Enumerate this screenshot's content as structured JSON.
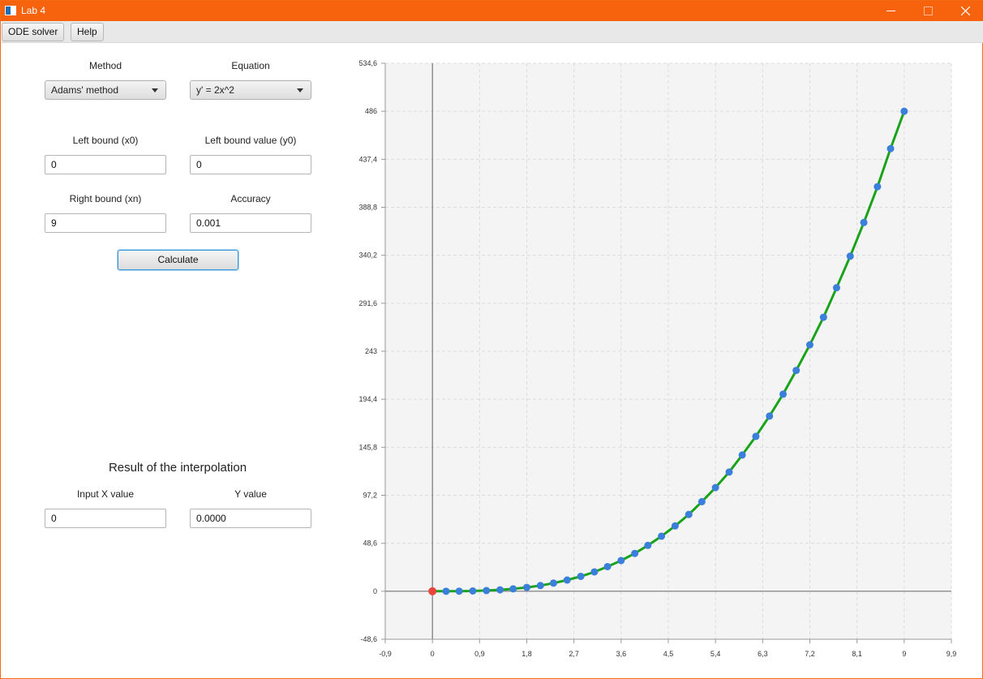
{
  "window": {
    "title": "Lab 4",
    "accent": "#f7630c"
  },
  "menu": {
    "items": [
      "ODE solver",
      "Help"
    ]
  },
  "form": {
    "method_label": "Method",
    "method_value": "Adams' method",
    "equation_label": "Equation",
    "equation_value": "y' = 2x^2",
    "left_bound_label": "Left bound (x0)",
    "left_bound_value": "0",
    "left_bound_y_label": "Left bound value (y0)",
    "left_bound_y_value": "0",
    "right_bound_label": "Right bound (xn)",
    "right_bound_value": "9",
    "accuracy_label": "Accuracy",
    "accuracy_value": "0.001",
    "calculate_label": "Calculate"
  },
  "interpolation": {
    "title": "Result of the interpolation",
    "input_x_label": "Input X value",
    "input_x_value": "0",
    "y_label": "Y value",
    "y_value": "0.0000"
  },
  "chart_data": {
    "type": "line",
    "title": "",
    "xlabel": "",
    "ylabel": "",
    "xlim": [
      -0.9,
      9.9
    ],
    "ylim": [
      -48.6,
      534.6
    ],
    "grid": true,
    "xticks": [
      "-0,9",
      "0",
      "0,9",
      "1,8",
      "2,7",
      "3,6",
      "4,5",
      "5,4",
      "6,3",
      "7,2",
      "8,1",
      "9",
      "9,9"
    ],
    "yticks": [
      "534,6",
      "486",
      "437,4",
      "388,8",
      "340,2",
      "291,6",
      "243",
      "194,4",
      "145,8",
      "97,2",
      "48,6",
      "0",
      "-48,6"
    ],
    "series": [
      {
        "line_color": "#1aa31a",
        "point_color": "#3a7fd9",
        "x": [
          0,
          0.26,
          0.51,
          0.77,
          1.03,
          1.29,
          1.54,
          1.8,
          2.06,
          2.31,
          2.57,
          2.83,
          3.09,
          3.34,
          3.6,
          3.86,
          4.11,
          4.37,
          4.63,
          4.89,
          5.14,
          5.4,
          5.66,
          5.91,
          6.17,
          6.43,
          6.69,
          6.94,
          7.2,
          7.46,
          7.71,
          7.97,
          8.23,
          8.49,
          8.74,
          9.0
        ],
        "y": [
          0,
          0.01,
          0.09,
          0.31,
          0.73,
          1.42,
          2.45,
          3.89,
          5.81,
          8.27,
          11.35,
          15.1,
          19.6,
          24.93,
          31.1,
          38.27,
          46.47,
          55.73,
          66.16,
          77.75,
          90.7,
          104.98,
          120.68,
          137.94,
          156.81,
          177.34,
          199.56,
          223.6,
          249.54,
          277.43,
          307.33,
          339.29,
          373.38,
          409.65,
          448.16,
          486.0
        ]
      }
    ],
    "highlight_point": {
      "x": 0,
      "y": 0,
      "color": "#e8453c"
    }
  }
}
